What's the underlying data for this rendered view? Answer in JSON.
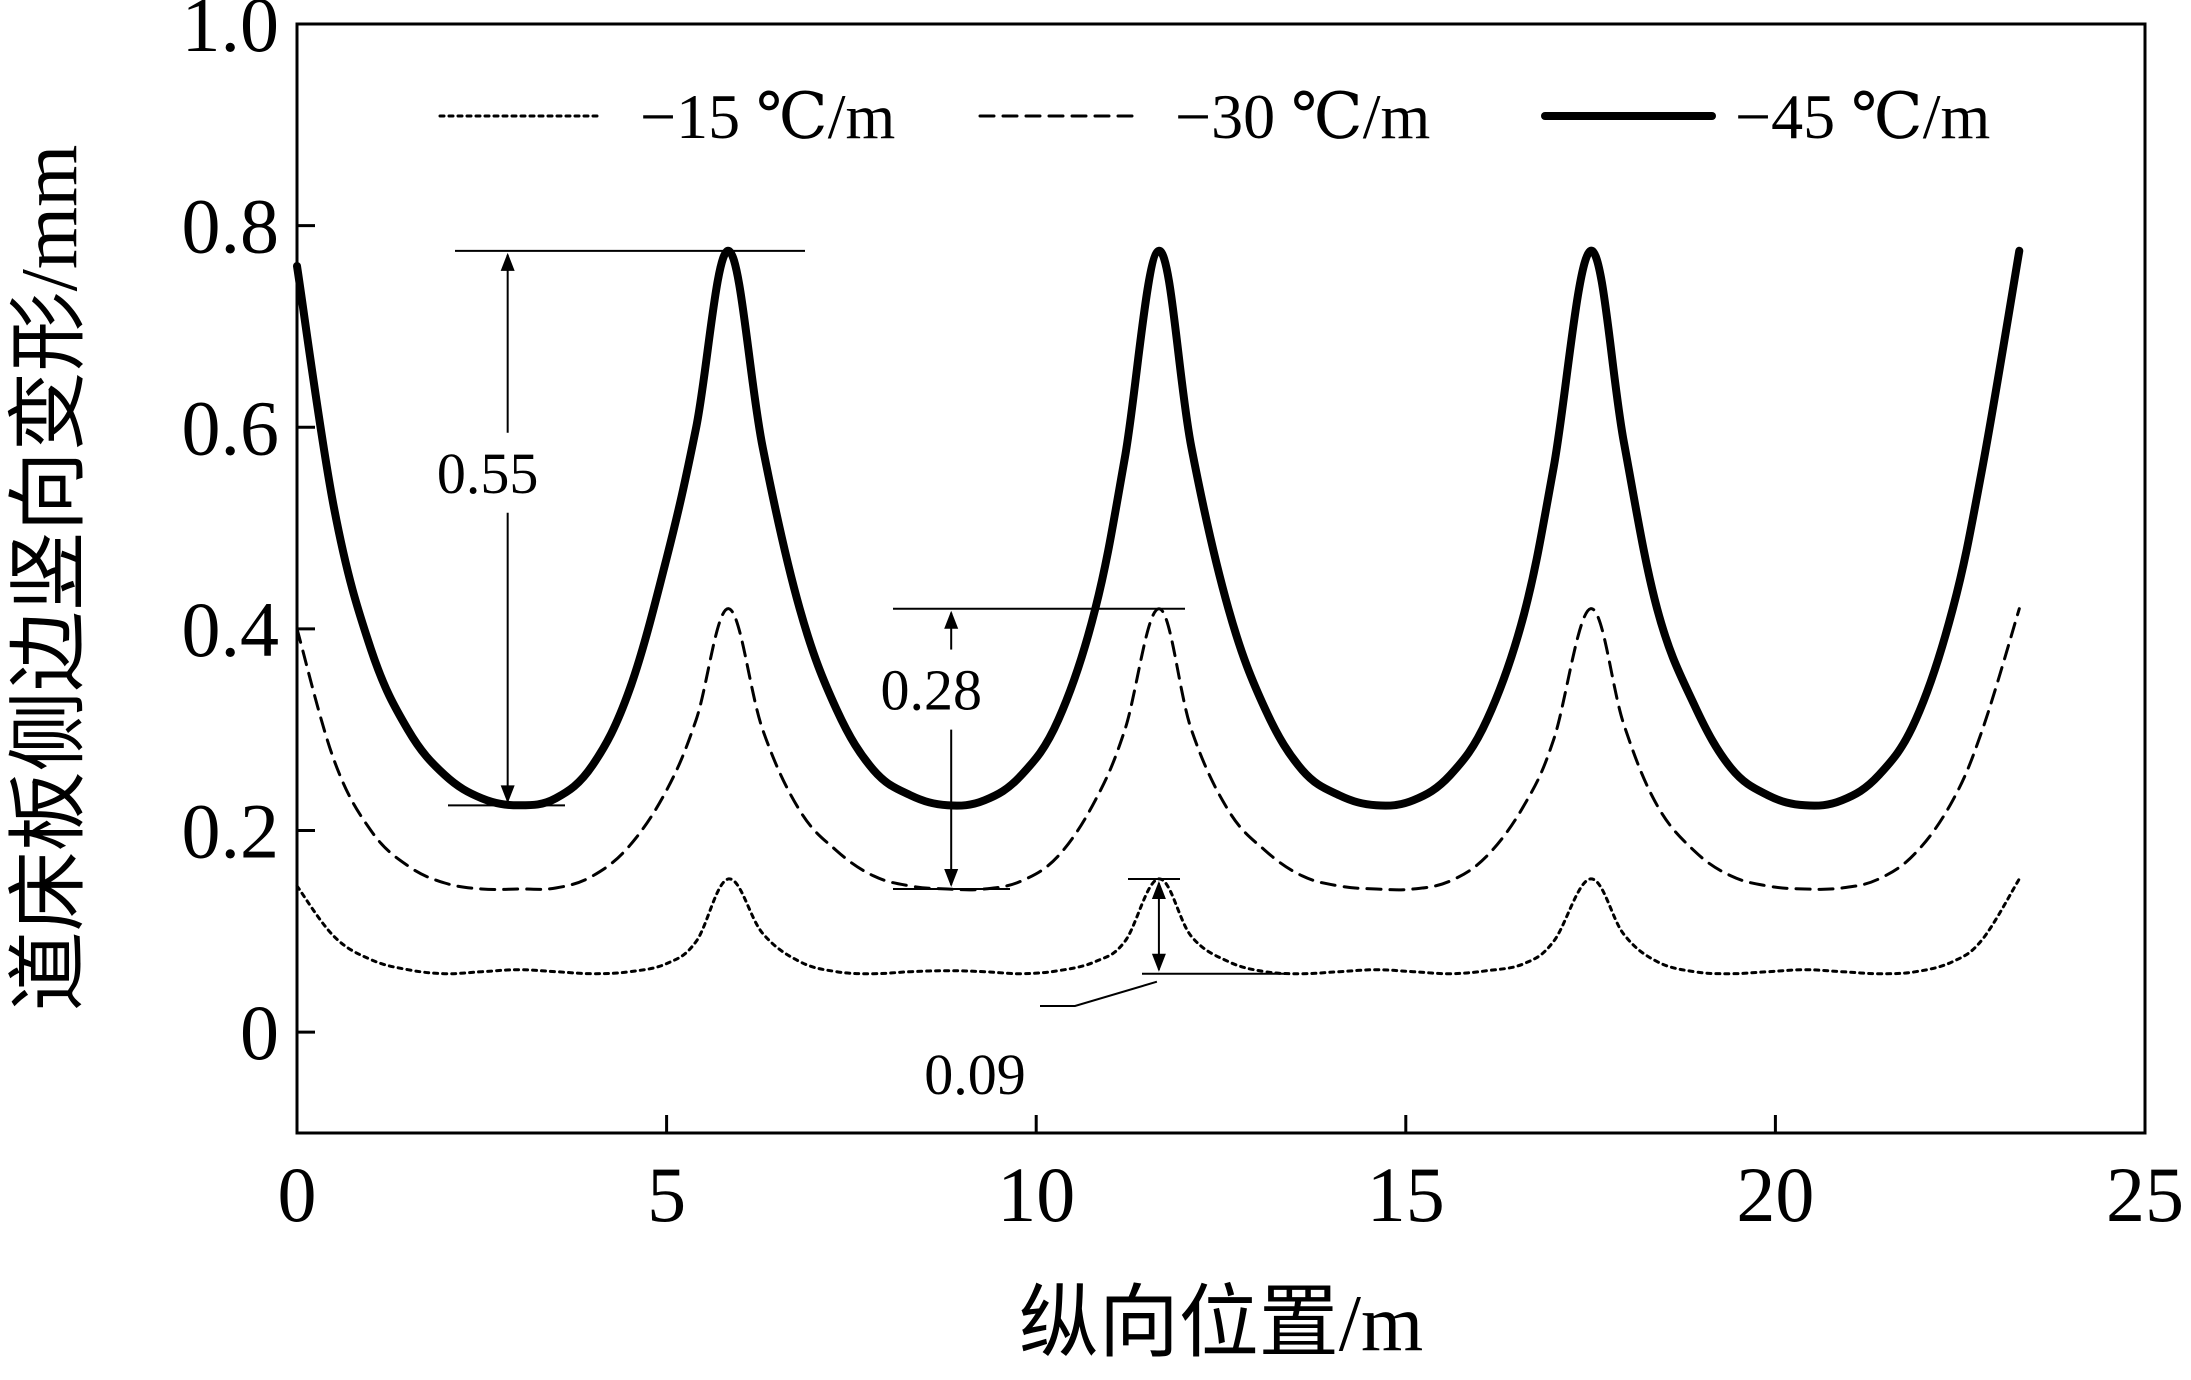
{
  "chart_data": {
    "type": "line",
    "xlabel": "纵向位置/m",
    "ylabel": "道床板侧边竖向变形/mm",
    "xlim": [
      0,
      25
    ],
    "ylim": [
      -0.1,
      1.0
    ],
    "xticks": [
      "0",
      "5",
      "10",
      "15",
      "20",
      "25"
    ],
    "yticks": [
      "0",
      "0.2",
      "0.4",
      "0.6",
      "0.8",
      "1.0"
    ],
    "grid": false,
    "legend_position": "top",
    "series": [
      {
        "name": "−15 ℃/m",
        "style": "dotted",
        "color": "#000000",
        "x": [
          0,
          0.5,
          1.0,
          1.5,
          2.0,
          2.5,
          3.0,
          3.5,
          4.0,
          4.5,
          5.0,
          5.4,
          5.84,
          6.3,
          6.8,
          7.3,
          7.8,
          8.3,
          8.8,
          9.3,
          9.8,
          10.3,
          10.8,
          11.2,
          11.66,
          12.1,
          12.6,
          13.1,
          13.6,
          14.1,
          14.6,
          15.1,
          15.6,
          16.1,
          16.6,
          17.0,
          17.5,
          17.95,
          18.4,
          18.9,
          19.4,
          19.9,
          20.4,
          20.9,
          21.4,
          21.9,
          22.4,
          22.8,
          23.3
        ],
        "y": [
          0.145,
          0.095,
          0.072,
          0.062,
          0.058,
          0.06,
          0.062,
          0.06,
          0.058,
          0.06,
          0.068,
          0.09,
          0.152,
          0.098,
          0.07,
          0.06,
          0.058,
          0.06,
          0.061,
          0.06,
          0.058,
          0.061,
          0.07,
          0.09,
          0.152,
          0.095,
          0.07,
          0.06,
          0.058,
          0.06,
          0.062,
          0.06,
          0.058,
          0.061,
          0.068,
          0.09,
          0.152,
          0.097,
          0.07,
          0.06,
          0.058,
          0.06,
          0.062,
          0.06,
          0.058,
          0.06,
          0.07,
          0.092,
          0.152
        ]
      },
      {
        "name": "−30 ℃/m",
        "style": "dashed",
        "color": "#000000",
        "x": [
          0,
          0.5,
          1.0,
          1.5,
          2.0,
          2.5,
          3.0,
          3.5,
          4.0,
          4.5,
          5.0,
          5.4,
          5.84,
          6.3,
          6.8,
          7.3,
          7.8,
          8.3,
          8.8,
          9.3,
          9.8,
          10.3,
          10.8,
          11.2,
          11.66,
          12.1,
          12.6,
          13.1,
          13.6,
          14.1,
          14.6,
          15.1,
          15.6,
          16.1,
          16.6,
          17.0,
          17.5,
          17.95,
          18.4,
          18.9,
          19.4,
          19.9,
          20.4,
          20.9,
          21.4,
          21.9,
          22.4,
          22.8,
          23.3
        ],
        "y": [
          0.4,
          0.27,
          0.2,
          0.165,
          0.148,
          0.142,
          0.142,
          0.143,
          0.155,
          0.185,
          0.24,
          0.31,
          0.42,
          0.3,
          0.22,
          0.18,
          0.155,
          0.145,
          0.142,
          0.142,
          0.15,
          0.175,
          0.23,
          0.3,
          0.42,
          0.3,
          0.22,
          0.18,
          0.155,
          0.145,
          0.142,
          0.142,
          0.15,
          0.175,
          0.225,
          0.29,
          0.42,
          0.305,
          0.225,
          0.18,
          0.155,
          0.145,
          0.142,
          0.143,
          0.152,
          0.178,
          0.23,
          0.3,
          0.42
        ]
      },
      {
        "name": "−45 ℃/m",
        "style": "solid",
        "color": "#000000",
        "x": [
          0,
          0.5,
          1.0,
          1.5,
          2.0,
          2.5,
          3.0,
          3.5,
          4.0,
          4.5,
          5.0,
          5.4,
          5.84,
          6.3,
          6.8,
          7.3,
          7.8,
          8.3,
          8.8,
          9.3,
          9.8,
          10.3,
          10.8,
          11.2,
          11.66,
          12.1,
          12.6,
          13.1,
          13.6,
          14.1,
          14.6,
          15.1,
          15.6,
          16.1,
          16.6,
          17.0,
          17.5,
          17.95,
          18.4,
          18.9,
          19.4,
          19.9,
          20.4,
          20.9,
          21.4,
          21.9,
          22.4,
          22.8,
          23.3
        ],
        "y": [
          0.76,
          0.52,
          0.38,
          0.3,
          0.255,
          0.232,
          0.225,
          0.232,
          0.265,
          0.34,
          0.47,
          0.6,
          0.775,
          0.58,
          0.42,
          0.32,
          0.26,
          0.235,
          0.225,
          0.23,
          0.255,
          0.31,
          0.42,
          0.57,
          0.775,
          0.58,
          0.42,
          0.32,
          0.26,
          0.235,
          0.225,
          0.23,
          0.255,
          0.31,
          0.415,
          0.56,
          0.775,
          0.585,
          0.42,
          0.325,
          0.262,
          0.235,
          0.225,
          0.23,
          0.255,
          0.31,
          0.42,
          0.56,
          0.775
        ]
      }
    ],
    "annotations": [
      {
        "label": "0.55",
        "x": 2.85,
        "y_top": 0.775,
        "y_bottom": 0.225,
        "text_y": 0.535
      },
      {
        "label": "0.28",
        "x": 8.85,
        "y_top": 0.42,
        "y_bottom": 0.142,
        "text_y": 0.32
      },
      {
        "label": "0.09",
        "x": 11.66,
        "y_top": 0.152,
        "y_bottom": 0.058,
        "text_y": 0.0
      }
    ]
  }
}
